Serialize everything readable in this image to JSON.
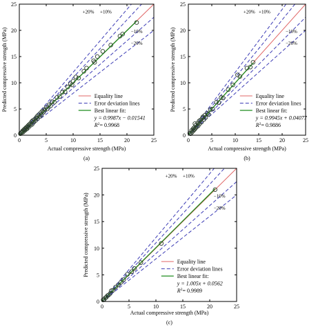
{
  "colors": {
    "equality": "#e06666",
    "error": "#3b3bb5",
    "fit": "#1e8c1e",
    "marker": "#2c3e2c",
    "axis": "#000000"
  },
  "legend_labels": {
    "equality": "Equality line",
    "error": "Error deviation lines",
    "fit_title": "Best linear fit:"
  },
  "band_labels": {
    "plus20": "+20%",
    "plus10": "+10%",
    "minus10": "−10%",
    "minus20": "−20%"
  },
  "chart_data": [
    {
      "type": "scatter",
      "panel_label": "(a)",
      "xlabel": "Actual compressive strength (MPa)",
      "ylabel": "Predicted compressive strength (MPa)",
      "xlim": [
        0,
        25
      ],
      "ylim": [
        0,
        25
      ],
      "xticks": [
        "0",
        "5",
        "10",
        "15",
        "20",
        "25"
      ],
      "yticks": [
        "0",
        "5",
        "10",
        "15",
        "20",
        "25"
      ],
      "fit_equation": "y = 0.9987x − 0.01541",
      "r2_value": "= 0.9968",
      "fit": {
        "slope": 0.9987,
        "intercept": -0.01541
      },
      "fit_range": [
        0,
        21.8
      ],
      "points": [
        [
          0.2,
          0.3
        ],
        [
          0.4,
          0.5
        ],
        [
          0.5,
          0.6
        ],
        [
          0.6,
          0.8
        ],
        [
          0.7,
          0.6
        ],
        [
          0.8,
          1.0
        ],
        [
          0.9,
          1.1
        ],
        [
          1.0,
          0.9
        ],
        [
          1.1,
          1.3
        ],
        [
          1.2,
          1.1
        ],
        [
          1.3,
          1.5
        ],
        [
          1.4,
          1.2
        ],
        [
          1.5,
          1.6
        ],
        [
          1.6,
          1.8
        ],
        [
          1.7,
          1.5
        ],
        [
          1.8,
          2.0
        ],
        [
          2.0,
          2.2
        ],
        [
          2.1,
          1.9
        ],
        [
          2.3,
          2.6
        ],
        [
          2.4,
          2.1
        ],
        [
          2.5,
          2.8
        ],
        [
          2.7,
          2.5
        ],
        [
          2.8,
          3.0
        ],
        [
          3.0,
          2.8
        ],
        [
          3.1,
          3.3
        ],
        [
          3.3,
          3.6
        ],
        [
          3.4,
          3.2
        ],
        [
          3.6,
          3.9
        ],
        [
          3.8,
          3.6
        ],
        [
          4.0,
          4.3
        ],
        [
          4.1,
          3.9
        ],
        [
          4.3,
          4.6
        ],
        [
          4.5,
          4.4
        ],
        [
          4.7,
          4.9
        ],
        [
          5.0,
          5.3
        ],
        [
          5.2,
          5.0
        ],
        [
          5.5,
          5.8
        ],
        [
          5.8,
          5.6
        ],
        [
          6.1,
          6.4
        ],
        [
          6.5,
          6.3
        ],
        [
          7.0,
          7.2
        ],
        [
          7.5,
          7.4
        ],
        [
          8.0,
          8.2
        ],
        [
          8.5,
          8.3
        ],
        [
          9.0,
          9.2
        ],
        [
          9.5,
          9.8
        ],
        [
          9.8,
          9.6
        ],
        [
          10.0,
          10.3
        ],
        [
          10.5,
          11.1
        ],
        [
          11.0,
          10.9
        ],
        [
          12.0,
          12.2
        ],
        [
          12.5,
          12.8
        ],
        [
          13.8,
          14.2
        ],
        [
          14.0,
          13.9
        ],
        [
          14.5,
          15.0
        ],
        [
          15.5,
          16.0
        ],
        [
          17.0,
          17.2
        ],
        [
          18.7,
          18.9
        ],
        [
          19.2,
          19.3
        ],
        [
          21.8,
          21.5
        ]
      ]
    },
    {
      "type": "scatter",
      "panel_label": "(b)",
      "xlabel": "Actual compressive strength (MPa)",
      "ylabel": "Predicted compressive strength (MPa)",
      "xlim": [
        0,
        25
      ],
      "ylim": [
        0,
        25
      ],
      "xticks": [
        "0",
        "5",
        "10",
        "15",
        "20",
        "25"
      ],
      "yticks": [
        "0",
        "5",
        "10",
        "15",
        "20",
        "25"
      ],
      "fit_equation": "y = 0.9945x + 0.04077",
      "r2_value": "= 0.9886",
      "fit": {
        "slope": 0.9945,
        "intercept": 0.04077
      },
      "fit_range": [
        0,
        13.9
      ],
      "points": [
        [
          0.3,
          0.4
        ],
        [
          0.5,
          0.3
        ],
        [
          0.7,
          0.9
        ],
        [
          0.8,
          0.6
        ],
        [
          1.0,
          1.2
        ],
        [
          1.1,
          0.9
        ],
        [
          1.2,
          1.4
        ],
        [
          1.3,
          1.1
        ],
        [
          1.4,
          2.2
        ],
        [
          1.5,
          1.3
        ],
        [
          1.6,
          1.9
        ],
        [
          1.8,
          1.6
        ],
        [
          2.0,
          2.3
        ],
        [
          2.1,
          1.8
        ],
        [
          2.3,
          2.7
        ],
        [
          2.4,
          2.2
        ],
        [
          2.6,
          2.9
        ],
        [
          2.8,
          2.5
        ],
        [
          3.0,
          3.3
        ],
        [
          3.1,
          3.5
        ],
        [
          3.3,
          3.0
        ],
        [
          3.5,
          3.8
        ],
        [
          3.7,
          3.4
        ],
        [
          4.0,
          4.2
        ],
        [
          4.3,
          4.0
        ],
        [
          4.7,
          4.9
        ],
        [
          5.2,
          5.0
        ],
        [
          6.0,
          6.3
        ],
        [
          6.5,
          6.2
        ],
        [
          7.0,
          7.2
        ],
        [
          7.4,
          7.1
        ],
        [
          8.5,
          8.7
        ],
        [
          9.5,
          9.6
        ],
        [
          10.5,
          11.5
        ],
        [
          11.0,
          11.2
        ],
        [
          12.5,
          12.8
        ],
        [
          13.2,
          13.0
        ],
        [
          13.8,
          13.9
        ]
      ]
    },
    {
      "type": "scatter",
      "panel_label": "(c)",
      "xlabel": "Actual compressive strength (MPa)",
      "ylabel": "Predicted compressive strength (MPa)",
      "xlim": [
        0,
        25
      ],
      "ylim": [
        0,
        25
      ],
      "xticks": [
        "0",
        "5",
        "10",
        "15",
        "20",
        "25"
      ],
      "yticks": [
        "0",
        "5",
        "10",
        "15",
        "20",
        "25"
      ],
      "fit_equation": "y = 1.005x + 0.0562",
      "r2_value": "= 0.9989",
      "fit": {
        "slope": 1.005,
        "intercept": 0.0562
      },
      "fit_range": [
        0,
        21
      ],
      "points": [
        [
          0.2,
          0.3
        ],
        [
          0.4,
          0.4
        ],
        [
          0.6,
          0.7
        ],
        [
          0.8,
          0.8
        ],
        [
          1.0,
          1.1
        ],
        [
          1.2,
          1.2
        ],
        [
          1.5,
          1.5
        ],
        [
          1.7,
          2.0
        ],
        [
          2.0,
          2.1
        ],
        [
          2.5,
          2.7
        ],
        [
          3.0,
          3.1
        ],
        [
          3.5,
          3.6
        ],
        [
          4.0,
          4.1
        ],
        [
          4.7,
          5.1
        ],
        [
          5.5,
          5.6
        ],
        [
          6.0,
          6.2
        ],
        [
          7.2,
          7.3
        ],
        [
          11.0,
          10.9
        ],
        [
          21.0,
          21.0
        ]
      ]
    }
  ]
}
